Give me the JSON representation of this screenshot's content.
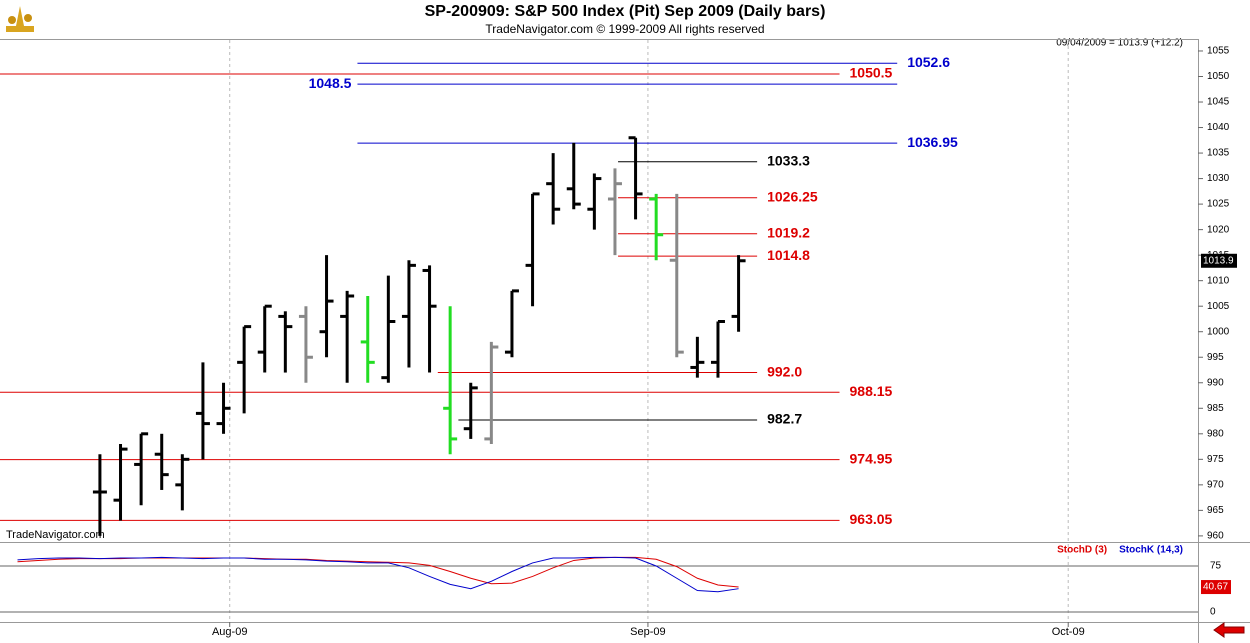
{
  "chart_data": {
    "type": "ohlc",
    "title": "SP-200909:  S&P 500 Index (Pit) Sep 2009  (Daily bars)",
    "subtitle": "TradeNavigator.com © 1999-2009 All rights reserved",
    "last_info": "09/04/2009 = 1013.9 (+12.2)",
    "watermark": "TradeNavigator.com",
    "current_price": 1013.9,
    "xlim": [
      -4.85,
      53.3
    ],
    "xticks": [
      {
        "value": 6.3,
        "label": "Aug-09"
      },
      {
        "value": 26.6,
        "label": "Sep-09"
      },
      {
        "value": 47,
        "label": "Oct-09"
      }
    ],
    "ylim": [
      959,
      1057.15
    ],
    "yticks": [
      960,
      965,
      970,
      975,
      980,
      985,
      990,
      995,
      1000,
      1005,
      1010,
      1015,
      1020,
      1025,
      1030,
      1035,
      1040,
      1045,
      1050,
      1055
    ],
    "bars": [
      {
        "x": 0,
        "open": 968.6,
        "high": 976,
        "low": 960,
        "close": 968.6,
        "color": "#000000"
      },
      {
        "x": 1,
        "open": 967,
        "high": 978,
        "low": 963,
        "close": 977,
        "color": "#000000"
      },
      {
        "x": 2,
        "open": 974,
        "high": 980,
        "low": 966,
        "close": 980,
        "color": "#000000"
      },
      {
        "x": 3,
        "open": 976,
        "high": 980,
        "low": 969,
        "close": 972,
        "color": "#000000"
      },
      {
        "x": 4,
        "open": 970,
        "high": 976,
        "low": 965,
        "close": 975,
        "color": "#000000"
      },
      {
        "x": 5,
        "open": 984,
        "high": 994,
        "low": 975,
        "close": 982,
        "color": "#000000"
      },
      {
        "x": 6,
        "open": 982,
        "high": 990,
        "low": 980,
        "close": 985,
        "color": "#000000"
      },
      {
        "x": 7,
        "open": 994,
        "high": 1001,
        "low": 984,
        "close": 1001,
        "color": "#000000"
      },
      {
        "x": 8,
        "open": 996,
        "high": 1005,
        "low": 992,
        "close": 1005,
        "color": "#000000"
      },
      {
        "x": 9,
        "open": 1003,
        "high": 1004,
        "low": 992,
        "close": 1001,
        "color": "#000000"
      },
      {
        "x": 10,
        "open": 1003,
        "high": 1005,
        "low": 990,
        "close": 995,
        "color": "#888888"
      },
      {
        "x": 11,
        "open": 1000,
        "high": 1015,
        "low": 995,
        "close": 1006,
        "color": "#000000"
      },
      {
        "x": 12,
        "open": 1003,
        "high": 1008,
        "low": 990,
        "close": 1007,
        "color": "#000000"
      },
      {
        "x": 13,
        "open": 998,
        "high": 1007,
        "low": 990,
        "close": 994,
        "color": "#22dd22"
      },
      {
        "x": 14,
        "open": 991,
        "high": 1011,
        "low": 990,
        "close": 1002,
        "color": "#000000"
      },
      {
        "x": 15,
        "open": 1003,
        "high": 1014,
        "low": 993,
        "close": 1013,
        "color": "#000000"
      },
      {
        "x": 16,
        "open": 1012,
        "high": 1013,
        "low": 992,
        "close": 1005,
        "color": "#000000"
      },
      {
        "x": 17,
        "open": 985,
        "high": 1005,
        "low": 976,
        "close": 979,
        "color": "#22dd22"
      },
      {
        "x": 18,
        "open": 981,
        "high": 990,
        "low": 979,
        "close": 989,
        "color": "#000000"
      },
      {
        "x": 19,
        "open": 979,
        "high": 998,
        "low": 978,
        "close": 997,
        "color": "#888888"
      },
      {
        "x": 20,
        "open": 996,
        "high": 1008,
        "low": 995,
        "close": 1008,
        "color": "#000000"
      },
      {
        "x": 21,
        "open": 1013,
        "high": 1027,
        "low": 1005,
        "close": 1027,
        "color": "#000000"
      },
      {
        "x": 22,
        "open": 1029,
        "high": 1035,
        "low": 1021,
        "close": 1024,
        "color": "#000000"
      },
      {
        "x": 23,
        "open": 1028,
        "high": 1037,
        "low": 1024,
        "close": 1025,
        "color": "#000000"
      },
      {
        "x": 24,
        "open": 1024,
        "high": 1031,
        "low": 1020,
        "close": 1030,
        "color": "#000000"
      },
      {
        "x": 25,
        "open": 1026,
        "high": 1032,
        "low": 1015,
        "close": 1029,
        "color": "#888888"
      },
      {
        "x": 26,
        "open": 1038,
        "high": 1038,
        "low": 1022,
        "close": 1027,
        "color": "#000000"
      },
      {
        "x": 27,
        "open": 1026,
        "high": 1027,
        "low": 1014,
        "close": 1019,
        "color": "#22dd22"
      },
      {
        "x": 28,
        "open": 1014,
        "high": 1027,
        "low": 995,
        "close": 996,
        "color": "#888888"
      },
      {
        "x": 29,
        "open": 993,
        "high": 999,
        "low": 991,
        "close": 994,
        "color": "#000000"
      },
      {
        "x": 30,
        "open": 994,
        "high": 1002,
        "low": 991,
        "close": 1002,
        "color": "#000000"
      },
      {
        "x": 31,
        "open": 1003,
        "high": 1015,
        "low": 1000,
        "close": 1013.9,
        "color": "#000000"
      }
    ],
    "levels": [
      {
        "value": 1052.6,
        "color": "#0000cc",
        "x_range": [
          12.5,
          38.7
        ]
      },
      {
        "value": 1050.5,
        "color": "#dd0000",
        "x_range": [
          -4.85,
          35.9
        ]
      },
      {
        "value": 1048.5,
        "color": "#0000cc",
        "x_range": [
          12.5,
          38.7
        ],
        "label_side": "left"
      },
      {
        "value": 1036.95,
        "color": "#0000cc",
        "x_range": [
          12.5,
          38.7
        ]
      },
      {
        "value": 1033.3,
        "color": "#000000",
        "x_range": [
          25.15,
          31.9
        ]
      },
      {
        "value": 1026.25,
        "color": "#dd0000",
        "x_range": [
          25.15,
          31.9
        ]
      },
      {
        "value": 1019.2,
        "color": "#dd0000",
        "x_range": [
          25.15,
          31.9
        ]
      },
      {
        "value": 1014.8,
        "color": "#dd0000",
        "x_range": [
          25.15,
          31.9
        ]
      },
      {
        "value": 992,
        "label": "992.0",
        "color": "#dd0000",
        "x_range": [
          16.4,
          31.9
        ]
      },
      {
        "value": 988.15,
        "color": "#dd0000",
        "x_range": [
          -4.85,
          35.9
        ]
      },
      {
        "value": 982.7,
        "color": "#000000",
        "x_range": [
          17.4,
          31.9
        ]
      },
      {
        "value": 974.95,
        "color": "#dd0000",
        "x_range": [
          -4.85,
          35.9
        ]
      },
      {
        "value": 963.05,
        "color": "#dd0000",
        "x_range": [
          -4.85,
          35.9
        ]
      }
    ],
    "indicator": {
      "type": "line",
      "x": [
        -4,
        -3,
        -2,
        -1,
        0,
        1,
        2,
        3,
        4,
        5,
        6,
        7,
        8,
        9,
        10,
        11,
        12,
        13,
        14,
        15,
        16,
        17,
        18,
        19,
        20,
        21,
        22,
        23,
        24,
        25,
        26,
        27,
        28,
        29,
        30,
        31
      ],
      "ylim": [
        -16.3,
        109.2
      ],
      "yticks": [
        0,
        75
      ],
      "current": 40.67,
      "series": [
        {
          "name": "StochD (3)",
          "color": "#dd0000",
          "values": [
            82,
            84,
            86,
            87,
            87,
            87,
            88,
            88,
            88,
            88,
            88,
            88,
            87,
            86,
            86,
            84,
            83,
            82,
            81,
            80,
            76,
            66,
            55,
            46,
            47,
            58,
            72,
            84,
            88,
            89,
            89,
            86,
            74,
            55,
            44,
            40.67
          ]
        },
        {
          "name": "StochK (14,3)",
          "color": "#0000cc",
          "values": [
            85,
            87,
            88,
            88,
            87,
            88,
            88,
            89,
            88,
            87,
            88,
            88,
            86,
            86,
            85,
            83,
            82,
            80,
            80,
            72,
            58,
            45,
            38,
            50,
            66,
            80,
            88,
            88,
            89,
            89,
            88,
            75,
            55,
            35,
            33,
            38
          ]
        }
      ]
    }
  }
}
